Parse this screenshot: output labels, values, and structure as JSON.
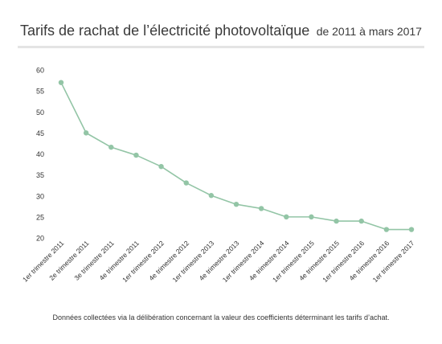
{
  "header": {
    "title": "Tarifs de rachat de l’électricité photovoltaïque",
    "subtitle": "de 2011 à mars 2017"
  },
  "footer": {
    "caption": "Données collectées via la délibération concernant la valeur des coefficients déterminant les tarifs d’achat."
  },
  "chart_data": {
    "type": "line",
    "title": "Tarifs de rachat de l’électricité photovoltaïque de 2011 à mars 2017",
    "xlabel": "",
    "ylabel": "",
    "categories": [
      "1er trimestre 2011",
      "2e trimestre 2011",
      "3e trimestre 2011",
      "4e trimestre 2011",
      "1er trimestre 2012",
      "4e trimestre 2012",
      "1er trimestre 2013",
      "4e trimestre 2013",
      "1er trimestre 2014",
      "4e trimestre 2014",
      "1er trimestre 2015",
      "4e trimestre 2015",
      "1er trimestre 2016",
      "4e trimestre 2016",
      "1er trimestre 2017"
    ],
    "series": [
      {
        "values": [
          57,
          45,
          41.6,
          39.7,
          37,
          33.1,
          30.1,
          28,
          27,
          25,
          25,
          24,
          24,
          22,
          22
        ]
      }
    ],
    "ylim": [
      20,
      60
    ],
    "yticks": [
      20,
      25,
      30,
      35,
      40,
      45,
      50,
      55,
      60
    ],
    "grid": false,
    "legend": "none",
    "line_color": "#93c5a6"
  }
}
